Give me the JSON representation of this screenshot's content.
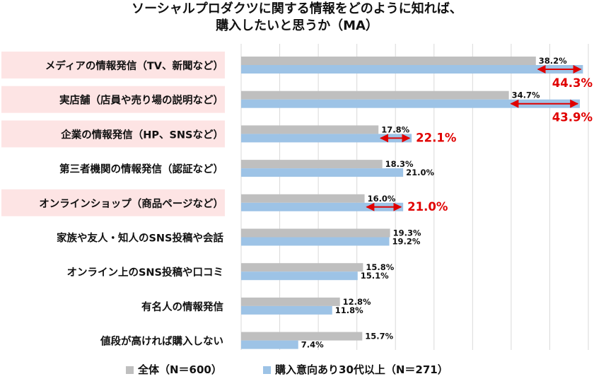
{
  "chart_data": {
    "type": "bar",
    "orientation": "horizontal",
    "title_lines": [
      "ソーシャルプロダクツに関する情報をどのように知れば、",
      "購入したいと思うか（MA）"
    ],
    "categories": [
      "メディアの情報発信（TV、新聞など）",
      "実店舗（店員や売り場の説明など）",
      "企業の情報発信（HP、SNSなど）",
      "第三者機関の情報発信（認証など）",
      "オンラインショップ（商品ページなど）",
      "家族や友人・知人のSNS投稿や会話",
      "オンライン上のSNS投稿や口コミ",
      "有名人の情報発信",
      "値段が高ければ購入しない"
    ],
    "highlighted": [
      true,
      true,
      true,
      false,
      true,
      false,
      false,
      false,
      false
    ],
    "series": [
      {
        "name": "全体（N＝600）",
        "color": "#bfbfbf",
        "values": [
          38.2,
          34.7,
          17.8,
          18.3,
          16.0,
          19.3,
          15.8,
          12.8,
          15.7
        ],
        "labels": [
          "38.2%",
          "34.7%",
          "17.8%",
          "18.3%",
          "16.0%",
          "19.3%",
          "15.8%",
          "12.8%",
          "15.7%"
        ]
      },
      {
        "name": "購入意向あり30代以上（N＝271）",
        "color": "#9dc3e6",
        "values": [
          44.3,
          43.9,
          22.1,
          21.0,
          21.0,
          19.2,
          15.1,
          11.8,
          7.4
        ],
        "labels": [
          "44.3%",
          "43.9%",
          "22.1%",
          "21.0%",
          "21.0%",
          "19.2%",
          "15.1%",
          "11.8%",
          "7.4%"
        ]
      }
    ],
    "emphasized_second_series": [
      true,
      true,
      true,
      false,
      true,
      false,
      false,
      false,
      false
    ],
    "xlim": [
      0,
      45
    ],
    "grid": true,
    "legend_position": "bottom",
    "highlight_color": "#fde4e4",
    "arrow_color": "#e00000"
  }
}
